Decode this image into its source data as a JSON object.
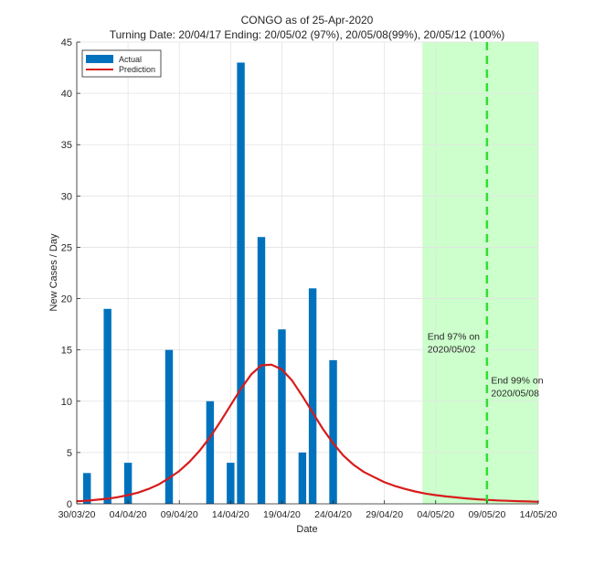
{
  "chart_data": {
    "type": "bar",
    "title": "CONGO as of 25-Apr-2020",
    "subtitle": "Turning Date: 20/04/17  Ending: 20/05/02 (97%), 20/05/08(99%), 20/05/12 (100%)",
    "xlabel": "Date",
    "ylabel": "New Cases / Day",
    "x_unit": "days since 30/03/20",
    "xlim": [
      0,
      45
    ],
    "ylim": [
      0,
      45
    ],
    "yticks": [
      0,
      5,
      10,
      15,
      20,
      25,
      30,
      35,
      40,
      45
    ],
    "xticks": [
      0,
      5,
      10,
      15,
      20,
      25,
      30,
      35,
      40,
      45
    ],
    "xtick_labels": [
      "30/03/20",
      "04/04/20",
      "09/04/20",
      "14/04/20",
      "19/04/20",
      "24/04/20",
      "29/04/20",
      "04/05/20",
      "09/05/20",
      "14/05/20"
    ],
    "grid": true,
    "legend": {
      "position": "top-left",
      "entries": [
        "Actual",
        "Prediction"
      ]
    },
    "series": [
      {
        "name": "Actual",
        "kind": "bar",
        "color": "#0072BD",
        "x": [
          1,
          3,
          5,
          9,
          13,
          15,
          16,
          18,
          20,
          22,
          23,
          25
        ],
        "values": [
          3,
          19,
          4,
          15,
          10,
          4,
          43,
          26,
          17,
          5,
          21,
          14
        ]
      },
      {
        "name": "Prediction",
        "kind": "line",
        "color": "#D81B1B",
        "x": [
          0,
          1,
          2,
          3,
          4,
          5,
          6,
          7,
          8,
          9,
          10,
          11,
          12,
          13,
          14,
          15,
          16,
          17,
          18,
          19,
          20,
          21,
          22,
          23,
          24,
          25,
          26,
          27,
          28,
          29,
          30,
          31,
          32,
          33,
          34,
          35,
          36,
          37,
          38,
          39,
          40,
          41,
          42,
          43,
          44,
          45
        ],
        "values": [
          0.25,
          0.3,
          0.4,
          0.5,
          0.65,
          0.85,
          1.1,
          1.45,
          1.9,
          2.5,
          3.2,
          4.1,
          5.2,
          6.5,
          8.0,
          9.6,
          11.2,
          12.6,
          13.5,
          13.55,
          13.1,
          12.0,
          10.5,
          8.9,
          7.3,
          5.9,
          4.7,
          3.8,
          3.1,
          2.6,
          2.1,
          1.75,
          1.45,
          1.2,
          1.0,
          0.85,
          0.72,
          0.62,
          0.53,
          0.45,
          0.38,
          0.33,
          0.29,
          0.26,
          0.23,
          0.2
        ]
      }
    ],
    "shaded_region": {
      "x_start": 33.7,
      "x_end": 45,
      "color": "#CCFFCC"
    },
    "vertical_line": {
      "x": 40,
      "color": "#33DD33",
      "style": "dashed"
    },
    "annotations": [
      {
        "lines": [
          "End 97% on",
          "2020/05/02"
        ],
        "x": 34.2,
        "y": 16
      },
      {
        "lines": [
          "End 99% on",
          "2020/05/08"
        ],
        "x": 40.4,
        "y": 11.7
      }
    ]
  }
}
